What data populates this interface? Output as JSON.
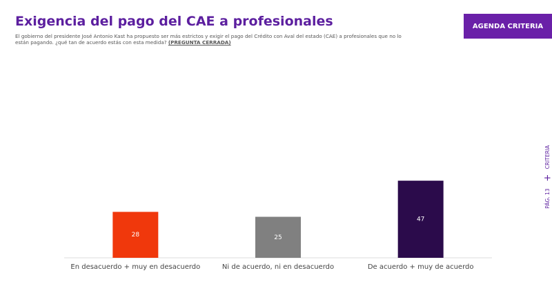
{
  "chart_data": {
    "type": "bar",
    "title": "Exigencia del pago del CAE a profesionales",
    "subtitle": "El gobierno del presidente José Antonio Kast ha propuesto ser más estrictos y exigir el pago del Crédito con Aval del estado (CAE) a profesionales que no lo están pagando. ¿qué tan de acuerdo estás con esta medida?",
    "subtitle_note": "(PREGUNTA CERRADA)",
    "categories": [
      "En desacuerdo + muy en desacuerdo",
      "Ni de acuerdo, ni en desacuerdo",
      "De acuerdo + muy de acuerdo"
    ],
    "values": [
      28,
      25,
      47
    ],
    "colors": [
      "#f0380c",
      "#808080",
      "#2b0b4b"
    ],
    "ylim": [
      0,
      100
    ]
  },
  "header": {
    "button": "AGENDA CRITERIA"
  },
  "sidebar": {
    "brand": "CRITERIA",
    "separator": "+",
    "page": "PÁG. 13"
  }
}
